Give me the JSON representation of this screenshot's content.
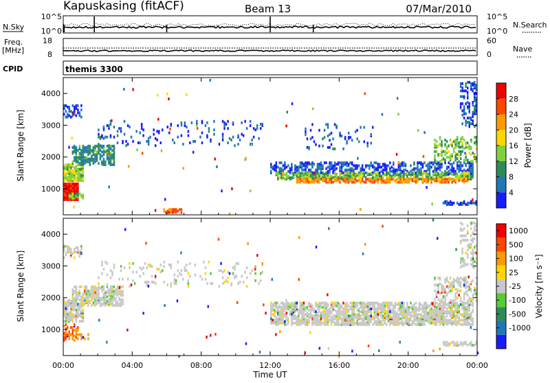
{
  "header": {
    "station": "Kapuskasing (fitACF)",
    "beam": "Beam 13",
    "date": "07/Mar/2010"
  },
  "strips": {
    "nsky_label": "N.Sky",
    "nsky_ticks": [
      "10^5",
      "10^0"
    ],
    "nsearch_label": "N.Search",
    "nsearch_ticks": [
      "10^5",
      "10^0"
    ],
    "freq_label": "Freq.",
    "freq_unit": "[MHz]",
    "freq_ticks": [
      "18",
      "8"
    ],
    "nave_label": "Nave",
    "nave_ticks": [
      "60",
      "0"
    ],
    "cpid_label": "CPID",
    "cpid_value": "themis 3300"
  },
  "chart_data": [
    {
      "type": "heatmap",
      "name": "power",
      "ylabel": "Slant Range [km]",
      "xlabel": "Time UT",
      "x_ticks": [
        "00:00",
        "04:00",
        "08:00",
        "12:00",
        "16:00",
        "20:00",
        "00:00"
      ],
      "xlim_hours": [
        0,
        24
      ],
      "y_ticks": [
        1000,
        2000,
        3000,
        4000
      ],
      "ylim": [
        180,
        4500
      ],
      "colorbar": {
        "label": "Power [dB]",
        "ticks": [
          4,
          8,
          12,
          16,
          20,
          24,
          28
        ],
        "range": [
          0,
          30
        ],
        "colors": [
          "#1b1bff",
          "#1f78b4",
          "#2e8b57",
          "#7fd13b",
          "#ffd700",
          "#ff9900",
          "#ff4500",
          "#ee0000"
        ]
      },
      "regions": [
        {
          "t0": 0.0,
          "t1": 0.8,
          "r0": 700,
          "r1": 1200,
          "level": 28,
          "density": 0.9
        },
        {
          "t0": 0.0,
          "t1": 1.2,
          "r0": 1300,
          "r1": 1800,
          "level": 14,
          "density": 0.7
        },
        {
          "t0": 0.5,
          "t1": 3.0,
          "r0": 1800,
          "r1": 2400,
          "level": 8,
          "density": 0.55
        },
        {
          "t0": 0.0,
          "t1": 1.0,
          "r0": 3300,
          "r1": 3700,
          "level": 4,
          "density": 0.35
        },
        {
          "t0": 0.3,
          "t1": 1.2,
          "r0": 750,
          "r1": 900,
          "level": 12,
          "density": 0.6
        },
        {
          "t0": 5.8,
          "t1": 6.8,
          "r0": 300,
          "r1": 420,
          "level": 24,
          "density": 0.8
        },
        {
          "t0": 2.0,
          "t1": 11.5,
          "r0": 2400,
          "r1": 3200,
          "level": 4,
          "density": 0.08
        },
        {
          "t0": 12.0,
          "t1": 23.8,
          "r0": 1500,
          "r1": 1900,
          "level": 4,
          "density": 0.4
        },
        {
          "t0": 12.3,
          "t1": 23.8,
          "r0": 1350,
          "r1": 1550,
          "level": 12,
          "density": 0.6
        },
        {
          "t0": 13.5,
          "t1": 23.5,
          "r0": 1250,
          "r1": 1350,
          "level": 22,
          "density": 0.6
        },
        {
          "t0": 14.0,
          "t1": 18.0,
          "r0": 2300,
          "r1": 3100,
          "level": 4,
          "density": 0.1
        },
        {
          "t0": 21.5,
          "t1": 24.0,
          "r0": 1900,
          "r1": 2700,
          "level": 12,
          "density": 0.3
        },
        {
          "t0": 23.0,
          "t1": 24.0,
          "r0": 3000,
          "r1": 4400,
          "level": 4,
          "density": 0.3
        },
        {
          "t0": 22.0,
          "t1": 24.0,
          "r0": 550,
          "r1": 680,
          "level": 4,
          "density": 0.6
        }
      ]
    },
    {
      "type": "heatmap",
      "name": "velocity",
      "ylabel": "Slant Range [km]",
      "xlabel": "Time UT",
      "x_ticks": [
        "00:00",
        "04:00",
        "08:00",
        "12:00",
        "16:00",
        "20:00",
        "00:00"
      ],
      "xlim_hours": [
        0,
        24
      ],
      "y_ticks": [
        1000,
        2000,
        3000,
        4000
      ],
      "ylim": [
        180,
        4500
      ],
      "colorbar": {
        "label": "Velocity [m s⁻¹]",
        "ticks": [
          "1000",
          "500",
          "100",
          "25",
          "-25",
          "-100",
          "-500",
          "-1000"
        ],
        "colors": [
          "#1b1bff",
          "#1f78b4",
          "#2e8b57",
          "#55cc33",
          "#c8c8c8",
          "#ffd700",
          "#ff9900",
          "#ff4500",
          "#ee0000"
        ]
      },
      "regions": [
        {
          "t0": 0.0,
          "t1": 1.2,
          "r0": 1300,
          "r1": 2000,
          "vel": 0,
          "density": 0.6
        },
        {
          "t0": 0.5,
          "t1": 3.5,
          "r0": 1800,
          "r1": 2400,
          "vel": 0,
          "density": 0.55
        },
        {
          "t0": 0.0,
          "t1": 1.0,
          "r0": 3300,
          "r1": 3700,
          "vel": 0,
          "density": 0.35
        },
        {
          "t0": 0.0,
          "t1": 0.8,
          "r0": 700,
          "r1": 1200,
          "vel": -300,
          "density": 0.35
        },
        {
          "t0": 0.3,
          "t1": 1.5,
          "r0": 750,
          "r1": 900,
          "vel": -150,
          "density": 0.5
        },
        {
          "t0": 2.0,
          "t1": 11.5,
          "r0": 2400,
          "r1": 3200,
          "vel": 0,
          "density": 0.08
        },
        {
          "t0": 12.0,
          "t1": 23.8,
          "r0": 1200,
          "r1": 1900,
          "vel": 0,
          "density": 0.6
        },
        {
          "t0": 21.5,
          "t1": 24.0,
          "r0": 1900,
          "r1": 2700,
          "vel": 0,
          "density": 0.3
        },
        {
          "t0": 23.0,
          "t1": 24.0,
          "r0": 3000,
          "r1": 4400,
          "vel": 0,
          "density": 0.3
        },
        {
          "t0": 22.0,
          "t1": 24.0,
          "r0": 550,
          "r1": 680,
          "vel": 0,
          "density": 0.6
        }
      ]
    }
  ]
}
